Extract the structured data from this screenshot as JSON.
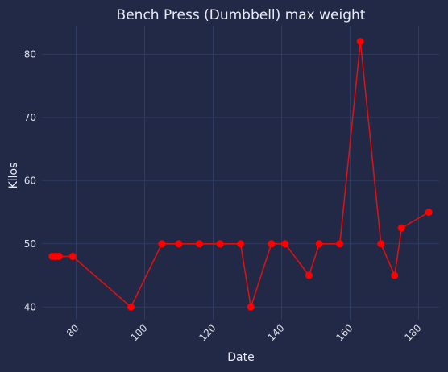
{
  "chart_data": {
    "type": "line",
    "title": "Bench Press (Dumbbell) max weight",
    "xlabel": "Date",
    "ylabel": "Kilos",
    "xlim": [
      70,
      186
    ],
    "ylim": [
      38,
      84.5
    ],
    "x_ticks": [
      80,
      100,
      120,
      140,
      160,
      180
    ],
    "y_ticks": [
      40,
      50,
      60,
      70,
      80
    ],
    "grid": true,
    "colors": {
      "background": "#212946",
      "line": "#dd1111",
      "marker": "#ff0000",
      "grid": "#2f3b62",
      "text": "#e9ecf5"
    },
    "series": [
      {
        "x": [
          73,
          74,
          75,
          79,
          96,
          105,
          110,
          116,
          122,
          128,
          131,
          137,
          141,
          148,
          151,
          157,
          163,
          169,
          173,
          175,
          183
        ],
        "y": [
          48,
          48,
          48,
          48,
          40,
          50,
          50,
          50,
          50,
          50,
          40,
          50,
          50,
          45,
          50,
          50,
          82,
          50,
          45,
          52.5,
          55
        ]
      }
    ]
  }
}
